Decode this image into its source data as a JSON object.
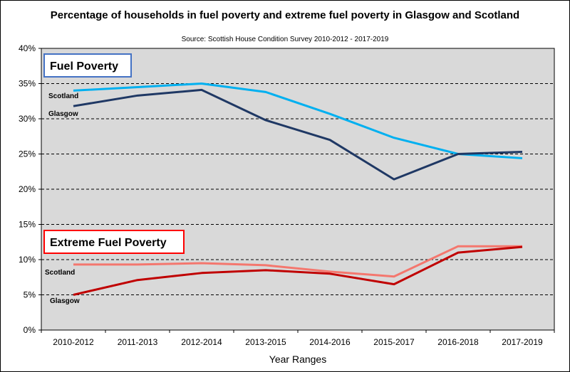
{
  "title": "Percentage of households in fuel poverty and extreme fuel poverty in Glasgow and Scotland",
  "subtitle": "Source: Scottish House Condition Survey 2010-2012 - 2017-2019",
  "chart_data": {
    "type": "line",
    "title": "Percentage of households in fuel poverty and extreme fuel poverty in Glasgow and Scotland",
    "subtitle": "Source: Scottish House Condition Survey 2010-2012 - 2017-2019",
    "xlabel": "Year Ranges",
    "ylabel": "",
    "categories": [
      "2010-2012",
      "2011-2013",
      "2012-2014",
      "2013-2015",
      "2014-2016",
      "2015-2017",
      "2016-2018",
      "2017-2019"
    ],
    "ylim": [
      0,
      40
    ],
    "yticks": [
      "0%",
      "5%",
      "10%",
      "15%",
      "20%",
      "25%",
      "30%",
      "35%",
      "40%"
    ],
    "grid": "horizontal dashed",
    "groups": [
      {
        "label": "Fuel Poverty",
        "border_color": "#4472C4",
        "series": [
          {
            "name": "Scotland",
            "color": "#00B0F0",
            "values": [
              34.0,
              34.5,
              35.0,
              33.8,
              30.7,
              27.3,
              25.0,
              24.4
            ]
          },
          {
            "name": "Glasgow",
            "color": "#1F3864",
            "values": [
              31.8,
              33.3,
              34.1,
              29.8,
              27.0,
              21.4,
              25.0,
              25.3
            ]
          }
        ]
      },
      {
        "label": "Extreme Fuel Poverty",
        "border_color": "#FF0000",
        "series": [
          {
            "name": "Scotland",
            "color": "#F4776E",
            "values": [
              9.3,
              9.3,
              9.5,
              9.2,
              8.3,
              7.6,
              11.9,
              11.9
            ]
          },
          {
            "name": "Glasgow",
            "color": "#C00000",
            "values": [
              5.0,
              7.1,
              8.1,
              8.5,
              8.0,
              6.5,
              11.0,
              11.8
            ]
          }
        ]
      }
    ]
  }
}
